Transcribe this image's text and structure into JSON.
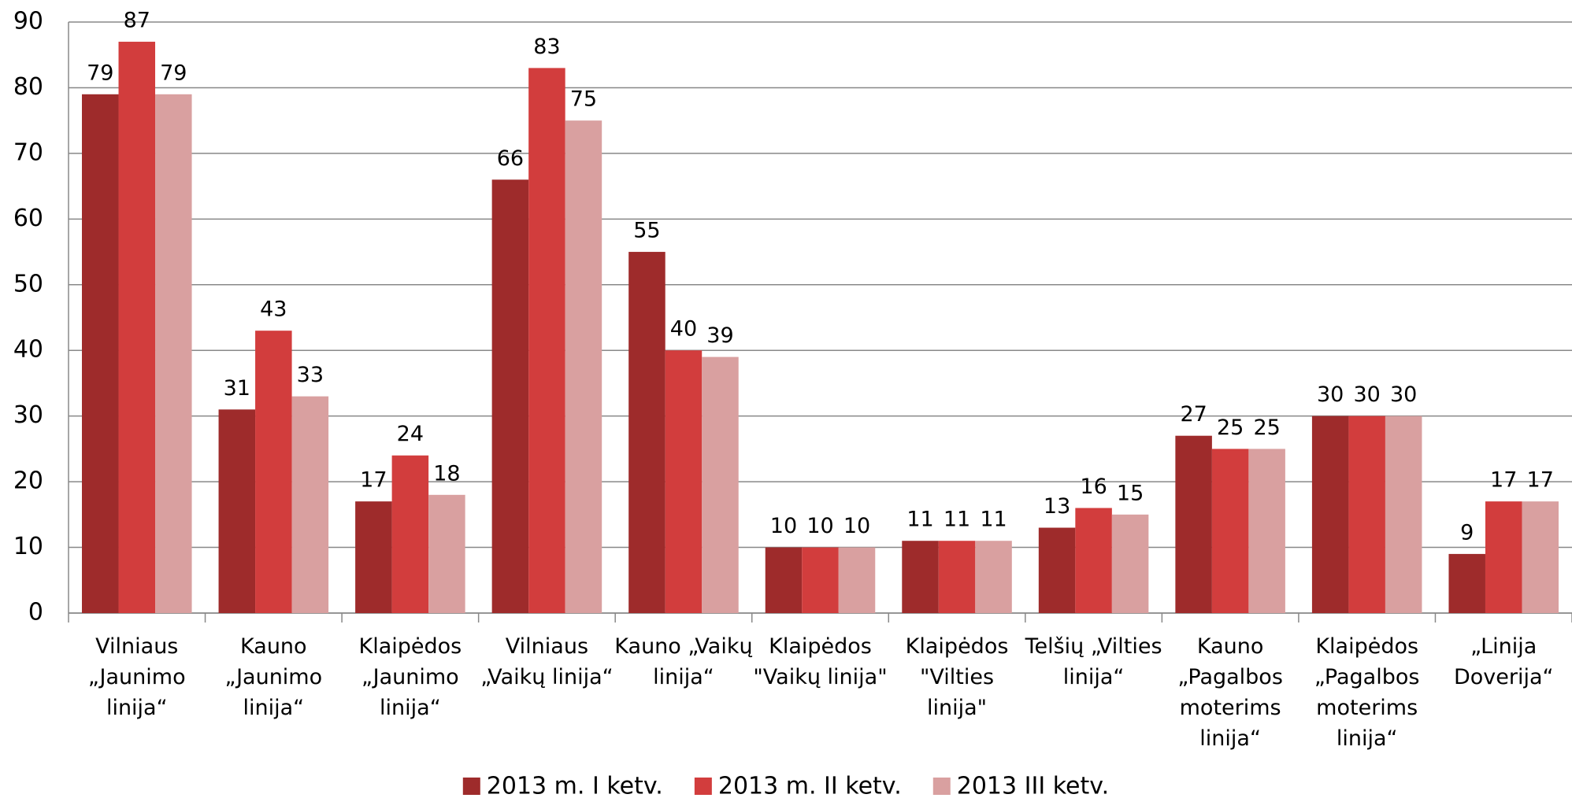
{
  "chart_data": {
    "type": "bar",
    "categories": [
      "Vilniaus\n„Jaunimo\nlinija“",
      "Kauno\n„Jaunimo\nlinija“",
      "Klaipėdos\n„Jaunimo\nlinija“",
      "Vilniaus\n„Vaikų linija“",
      "Kauno „Vaikų\nlinija“",
      "Klaipėdos\n\"Vaikų linija\"",
      "Klaipėdos\n\"Vilties\nlinija\"",
      "Telšių „Vilties\nlinija“",
      "Kauno\n„Pagalbos\nmoterims\nlinija“",
      "Klaipėdos\n„Pagalbos\nmoterims\nlinija“",
      "„Linija\nDoverija“"
    ],
    "series": [
      {
        "name": "2013 m. I ketv.",
        "color": "#9e2b2b",
        "values": [
          79,
          31,
          17,
          66,
          55,
          10,
          11,
          13,
          27,
          30,
          9
        ]
      },
      {
        "name": "2013 m. II ketv.",
        "color": "#d23d3d",
        "values": [
          87,
          43,
          24,
          83,
          40,
          10,
          11,
          16,
          25,
          30,
          17
        ]
      },
      {
        "name": "2013 III ketv.",
        "color": "#d9a0a0",
        "values": [
          79,
          33,
          18,
          75,
          39,
          10,
          11,
          15,
          25,
          30,
          17
        ]
      }
    ],
    "ylim": [
      0,
      90
    ],
    "yticks": [
      0,
      10,
      20,
      30,
      40,
      50,
      60,
      70,
      80,
      90
    ],
    "grid": true,
    "legend": "bottom"
  }
}
